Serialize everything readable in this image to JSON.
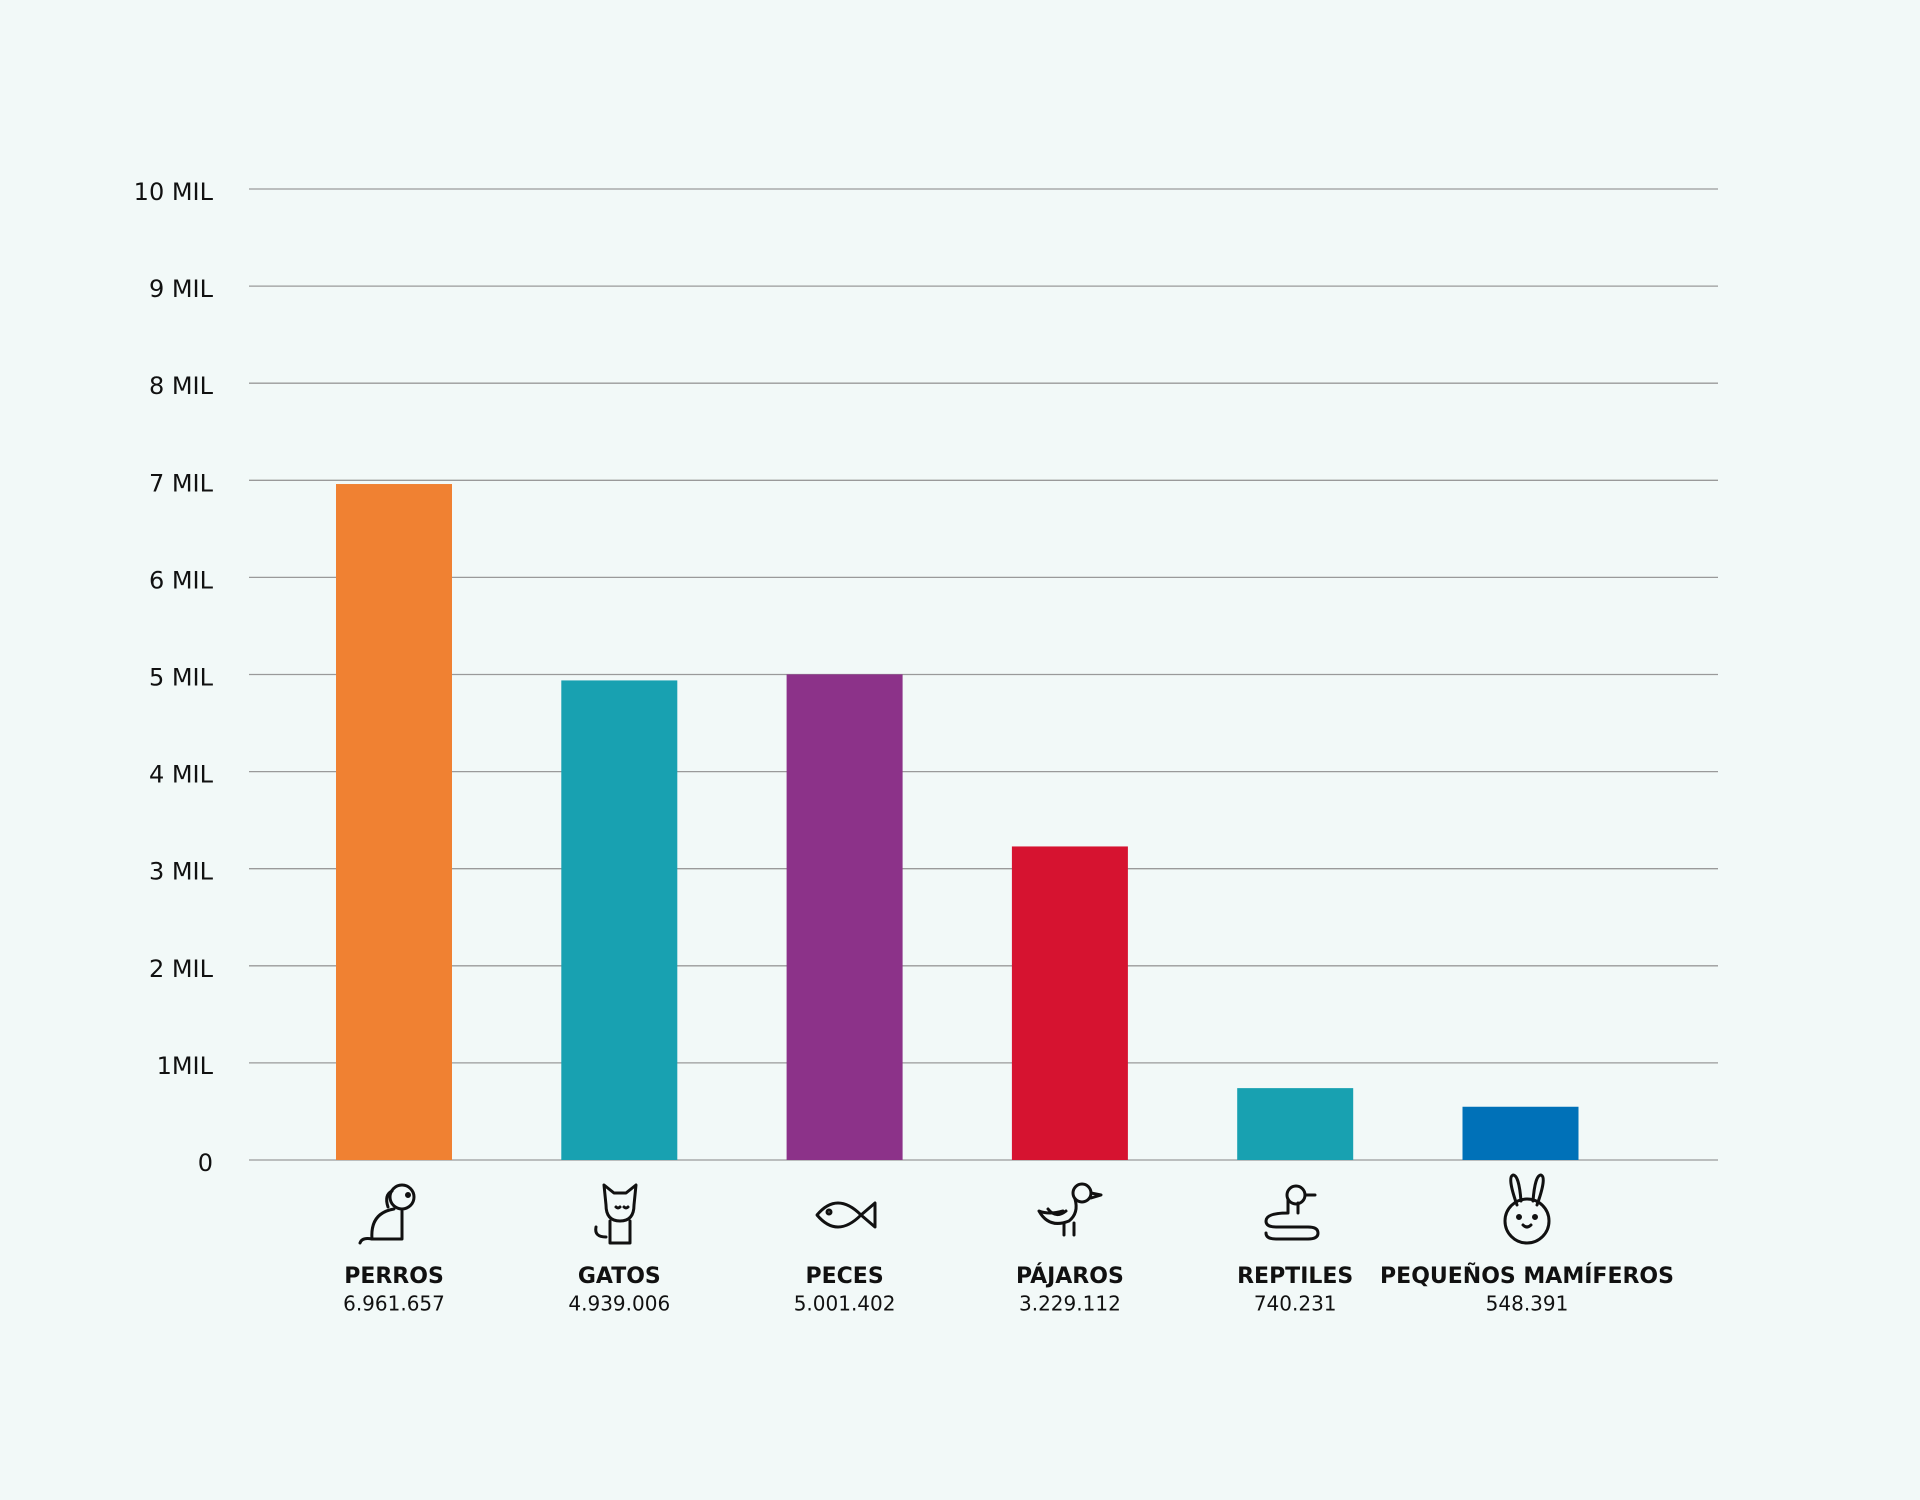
{
  "chart_data": {
    "type": "bar",
    "categories": [
      "PERROS",
      "GATOS",
      "PECES",
      "PÁJAROS",
      "REPTILES",
      "PEQUEÑOS MAMÍFEROS"
    ],
    "values": [
      6961657,
      4939006,
      5001402,
      3229112,
      740231,
      548391
    ],
    "value_labels": [
      "6.961.657",
      "4.939.006",
      "5.001.402",
      "3.229.112",
      "740.231",
      "548.391"
    ],
    "colors": [
      "#f08132",
      "#18a1b1",
      "#8c3289",
      "#d61330",
      "#18a1b1",
      "#0071b8"
    ],
    "ylim": [
      0,
      10000000
    ],
    "yticks": [
      0,
      {
        "value": 1000000,
        "label": "1MIL"
      },
      {
        "value": 2000000,
        "label": "2 MIL"
      },
      {
        "value": 3000000,
        "label": "3 MIL"
      },
      {
        "value": 4000000,
        "label": "4 MIL"
      },
      {
        "value": 5000000,
        "label": "5 MIL"
      },
      {
        "value": 6000000,
        "label": "6 MIL"
      },
      {
        "value": 7000000,
        "label": "7 MIL"
      },
      {
        "value": 8000000,
        "label": "8 MIL"
      },
      {
        "value": 9000000,
        "label": "9 MIL"
      },
      {
        "value": 10000000,
        "label": "10 MIL"
      }
    ],
    "grid": true
  }
}
